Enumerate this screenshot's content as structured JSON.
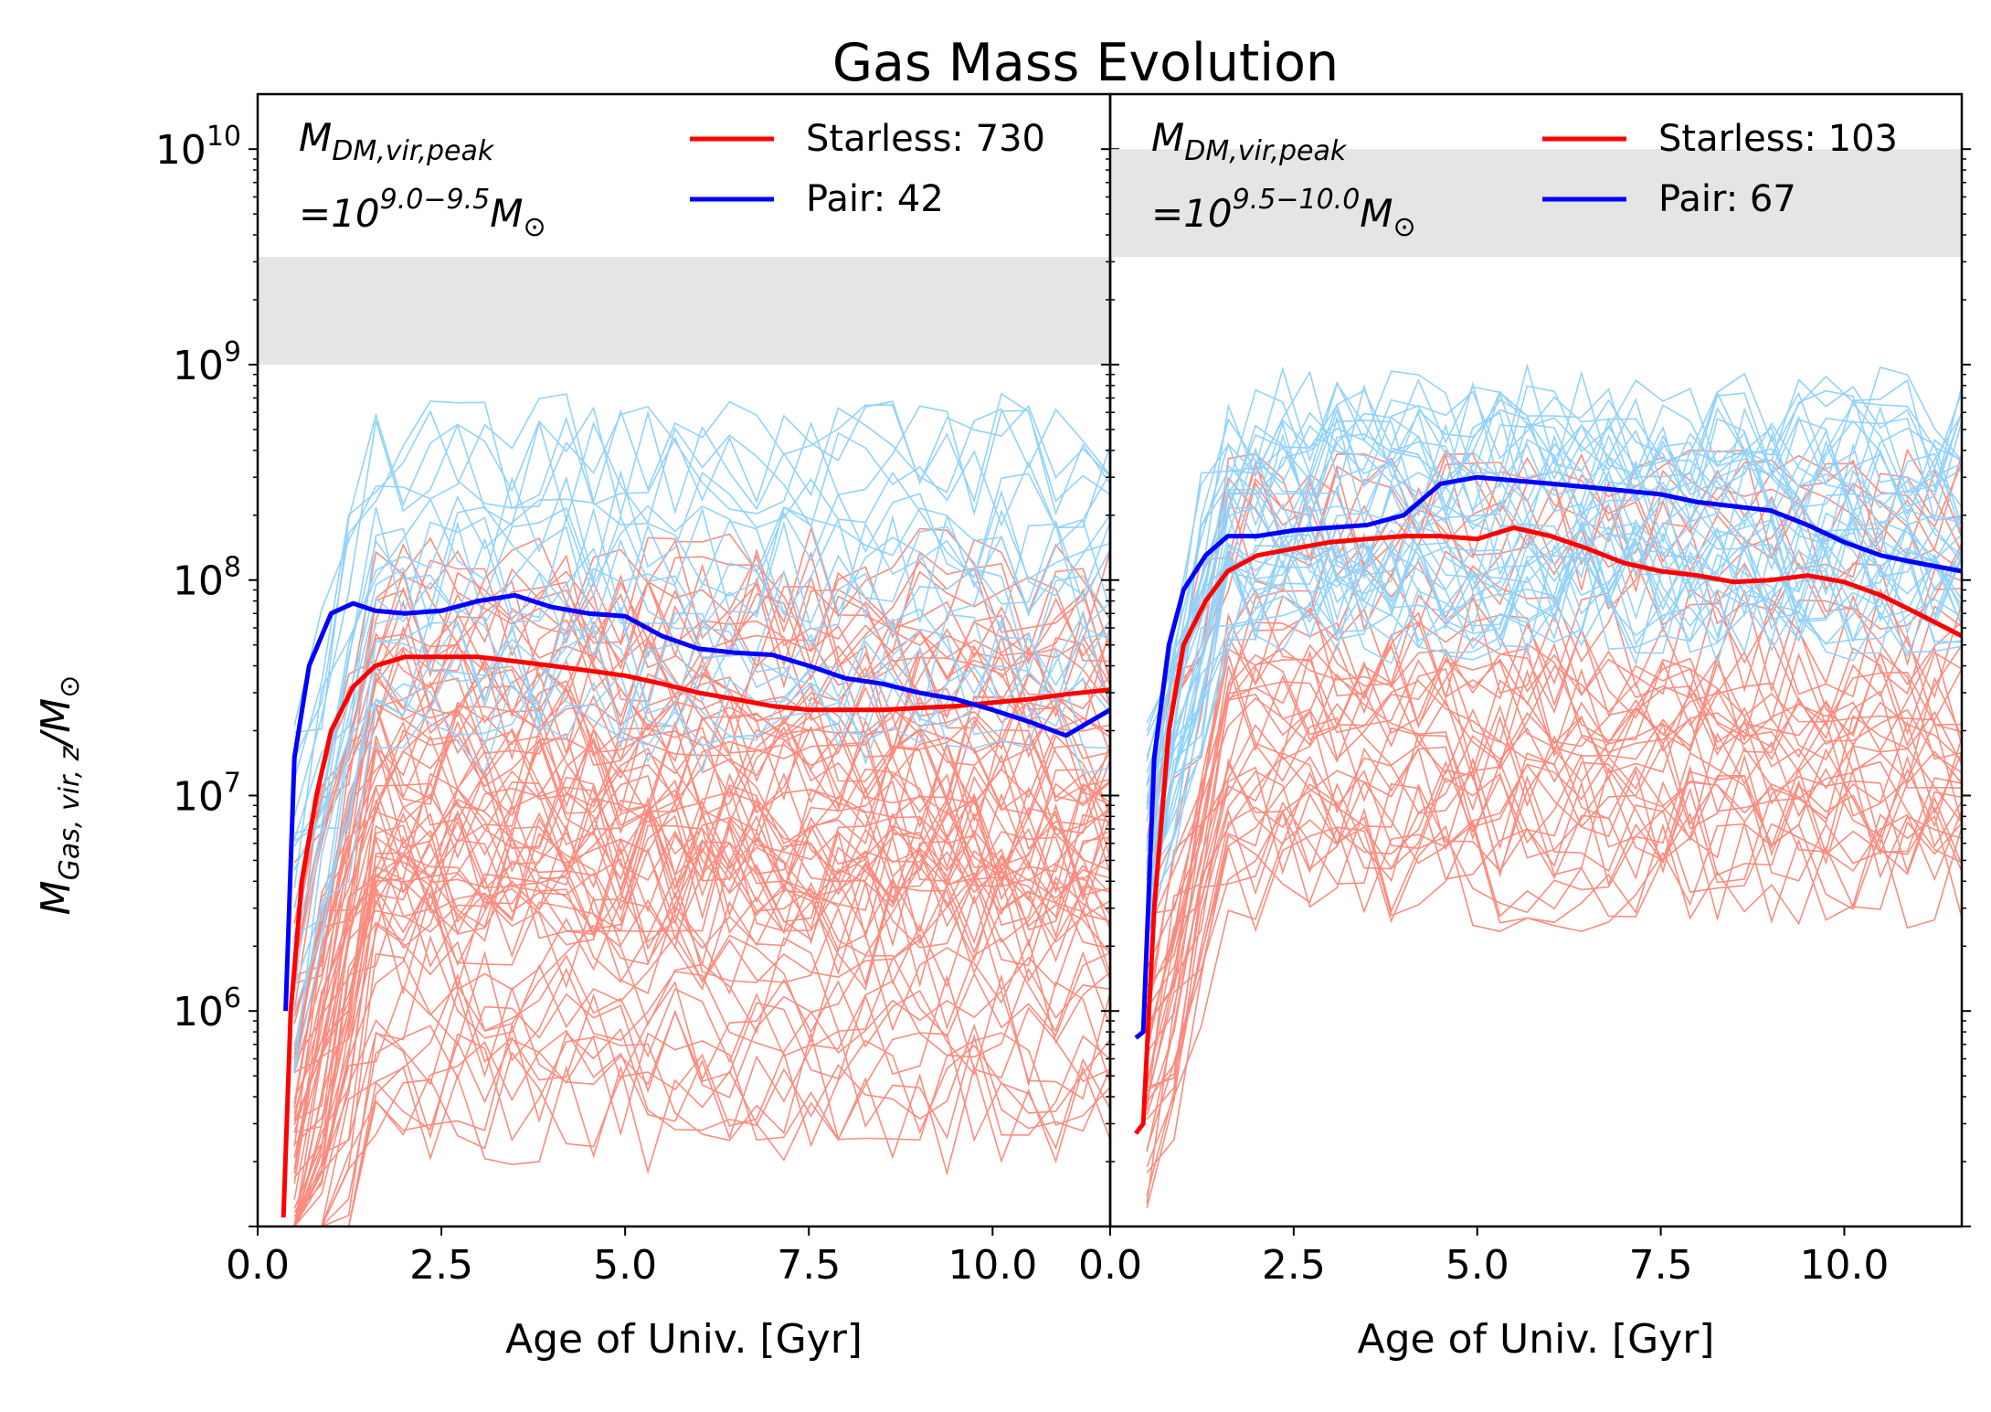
{
  "chart_data": {
    "type": "line",
    "title": "Gas Mass Evolution",
    "ylabel": "M_{Gas,vir,z}/M_⊙",
    "xlabel": "Age of Univ. [Gyr]",
    "yscale": "log",
    "ylim": [
      100000,
      18000000000
    ],
    "y_tick_labels": [
      "10^6",
      "10^7",
      "10^8",
      "10^9",
      "10^10"
    ],
    "shaded_band_color": "#e5e5e5",
    "colors": {
      "starless_mean": "#ff0000",
      "pair_mean": "#0000ff",
      "starless_tracks": "#fa8072",
      "pair_tracks": "#87cefa"
    },
    "panels": [
      {
        "annotation_line1": "M_{DM,vir,peak}",
        "annotation_line2": "=10^{9.0−9.5} M_⊙",
        "xlim": [
          0,
          11.6
        ],
        "x_tick_labels": [
          "0.0",
          "2.5",
          "5.0",
          "7.5",
          "10.0"
        ],
        "x_ticks": [
          0,
          2.5,
          5,
          7.5,
          10
        ],
        "shaded_band": [
          1000000000,
          3160000000
        ],
        "legend": [
          {
            "label": "Starless: 730",
            "color": "#ff0000"
          },
          {
            "label": "Pair: 42",
            "color": "#0000ff"
          }
        ],
        "series": [
          {
            "name": "Starless: 730",
            "color": "#ff0000",
            "x": [
              0.35,
              0.45,
              0.6,
              0.8,
              1.0,
              1.3,
              1.6,
              2.0,
              2.5,
              3.0,
              3.5,
              4.0,
              4.5,
              5.0,
              5.5,
              6.0,
              6.5,
              7.0,
              7.5,
              8.0,
              8.5,
              9.0,
              9.5,
              10.0,
              10.5,
              11.0,
              11.6
            ],
            "y": [
              110000,
              1000000,
              4000000,
              10000000,
              20000000,
              32000000,
              40000000,
              44000000,
              44000000,
              44000000,
              42000000,
              40000000,
              38000000,
              36000000,
              33000000,
              30000000,
              28000000,
              26000000,
              25000000,
              25000000,
              25000000,
              25500000,
              26000000,
              27000000,
              28000000,
              29500000,
              31000000
            ]
          },
          {
            "name": "Pair: 42",
            "color": "#0000ff",
            "x": [
              0.38,
              0.5,
              0.7,
              1.0,
              1.3,
              1.6,
              2.0,
              2.5,
              3.0,
              3.5,
              4.0,
              4.5,
              5.0,
              5.5,
              6.0,
              6.5,
              7.0,
              7.5,
              8.0,
              8.5,
              9.0,
              9.5,
              10.0,
              10.5,
              11.0,
              11.6
            ],
            "y": [
              1000000,
              15000000,
              40000000,
              70000000,
              78000000,
              72000000,
              70000000,
              72000000,
              80000000,
              85000000,
              75000000,
              70000000,
              68000000,
              55000000,
              48000000,
              46000000,
              45000000,
              40000000,
              35000000,
              33000000,
              30000000,
              28000000,
              25000000,
              22000000,
              19000000,
              25000000
            ]
          }
        ]
      },
      {
        "annotation_line1": "M_{DM,vir,peak}",
        "annotation_line2": "=10^{9.5−10.0} M_⊙",
        "xlim": [
          0,
          11.6
        ],
        "x_tick_labels": [
          "0.0",
          "2.5",
          "5.0",
          "7.5",
          "10.0"
        ],
        "x_ticks": [
          0,
          2.5,
          5,
          7.5,
          10
        ],
        "shaded_band": [
          3160000000,
          10000000000
        ],
        "legend": [
          {
            "label": "Starless: 103",
            "color": "#ff0000"
          },
          {
            "label": "Pair: 67",
            "color": "#0000ff"
          }
        ],
        "series": [
          {
            "name": "Starless: 103",
            "color": "#ff0000",
            "x": [
              0.35,
              0.45,
              0.6,
              0.8,
              1.0,
              1.3,
              1.6,
              2.0,
              2.5,
              3.0,
              3.5,
              4.0,
              4.5,
              5.0,
              5.5,
              6.0,
              6.5,
              7.0,
              7.5,
              8.0,
              8.5,
              9.0,
              9.5,
              10.0,
              10.5,
              11.0,
              11.6
            ],
            "y": [
              270000,
              300000,
              3000000,
              20000000,
              50000000,
              80000000,
              110000000,
              130000000,
              140000000,
              150000000,
              155000000,
              160000000,
              160000000,
              155000000,
              175000000,
              160000000,
              140000000,
              120000000,
              110000000,
              105000000,
              98000000,
              100000000,
              105000000,
              98000000,
              85000000,
              70000000,
              55000000
            ]
          },
          {
            "name": "Pair: 67",
            "color": "#0000ff",
            "x": [
              0.35,
              0.45,
              0.6,
              0.8,
              1.0,
              1.3,
              1.6,
              2.0,
              2.5,
              3.0,
              3.5,
              4.0,
              4.5,
              5.0,
              5.5,
              6.0,
              6.5,
              7.0,
              7.5,
              8.0,
              8.5,
              9.0,
              9.5,
              10.0,
              10.5,
              11.0,
              11.6
            ],
            "y": [
              750000,
              800000,
              15000000,
              50000000,
              90000000,
              130000000,
              160000000,
              160000000,
              170000000,
              175000000,
              180000000,
              200000000,
              280000000,
              300000000,
              290000000,
              280000000,
              270000000,
              260000000,
              250000000,
              230000000,
              220000000,
              210000000,
              180000000,
              150000000,
              130000000,
              120000000,
              110000000
            ]
          }
        ]
      }
    ]
  }
}
